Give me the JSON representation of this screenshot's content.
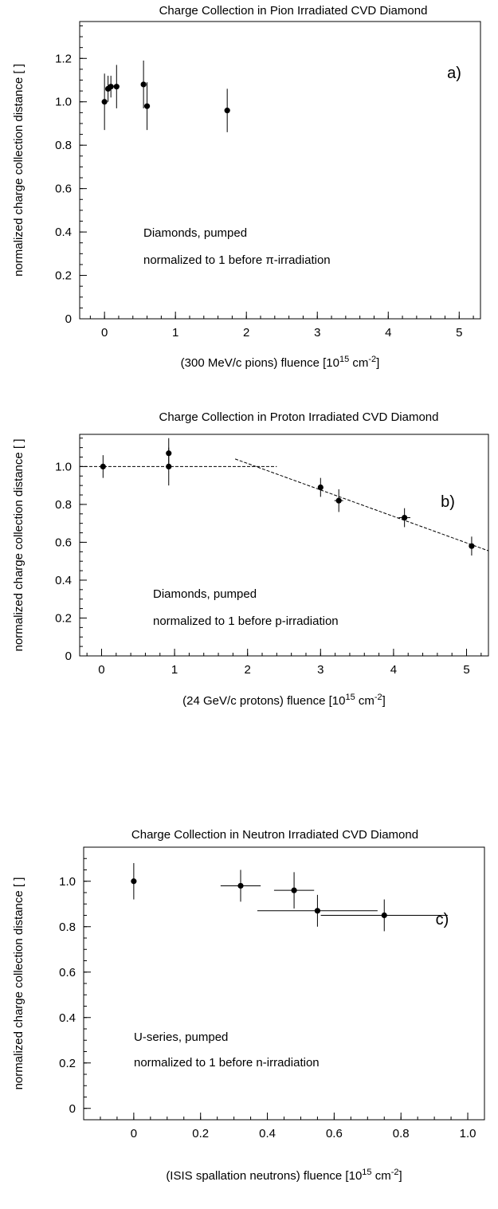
{
  "chart_data": [
    {
      "type": "scatter",
      "title": "Charge Collection in Pion Irradiated CVD Diamond",
      "xlabel": "(300 MeV/c pions) fluence [10",
      "xlabel_sup1": "15",
      "xlabel_mid": " cm",
      "xlabel_sup2": "-2",
      "xlabel_end": "]",
      "ylabel": "normalized charge collection distance [ ]",
      "panel_label": "a)",
      "annotation_lines": [
        "Diamonds, pumped",
        "normalized to 1 before π-irradiation"
      ],
      "xlim": [
        -0.35,
        5.3
      ],
      "ylim": [
        0,
        1.37
      ],
      "xticks": [
        0,
        1,
        2,
        3,
        4,
        5
      ],
      "xtick_labels": [
        "0",
        "1",
        "2",
        "3",
        "4",
        "5"
      ],
      "yticks": [
        0,
        0.2,
        0.4,
        0.6,
        0.8,
        1.0,
        1.2
      ],
      "ytick_labels": [
        "0",
        "0.2",
        "0.4",
        "0.6",
        "0.8",
        "1.0",
        "1.2"
      ],
      "series": [
        {
          "x": [
            0.0,
            0.05,
            0.09,
            0.17,
            0.55,
            0.6,
            1.73
          ],
          "y": [
            1.0,
            1.06,
            1.07,
            1.07,
            1.08,
            0.98,
            0.96
          ],
          "yerr": [
            0.13,
            0.06,
            0.05,
            0.1,
            0.11,
            0.11,
            0.1
          ],
          "xerr": [
            0,
            0,
            0,
            0,
            0,
            0,
            0
          ]
        }
      ],
      "fits": []
    },
    {
      "type": "scatter",
      "title": "Charge Collection in Proton Irradiated CVD Diamond",
      "xlabel": "(24 GeV/c protons) fluence [10",
      "xlabel_sup1": "15",
      "xlabel_mid": " cm",
      "xlabel_sup2": "-2",
      "xlabel_end": "]",
      "ylabel": "normalized charge collection distance [ ]",
      "panel_label": "b)",
      "annotation_lines": [
        "Diamonds, pumped",
        "normalized to 1 before p-irradiation"
      ],
      "xlim": [
        -0.3,
        5.3
      ],
      "ylim": [
        0,
        1.17
      ],
      "xticks": [
        0,
        1,
        2,
        3,
        4,
        5
      ],
      "xtick_labels": [
        "0",
        "1",
        "2",
        "3",
        "4",
        "5"
      ],
      "yticks": [
        0,
        0.2,
        0.4,
        0.6,
        0.8,
        1.0
      ],
      "ytick_labels": [
        "0",
        "0.2",
        "0.4",
        "0.6",
        "0.8",
        "1.0"
      ],
      "series": [
        {
          "x": [
            0.02,
            0.92,
            0.92,
            3.0,
            3.25,
            4.15,
            5.07
          ],
          "y": [
            1.0,
            1.07,
            1.0,
            0.89,
            0.82,
            0.73,
            0.58
          ],
          "yerr": [
            0.06,
            0.08,
            0.1,
            0.05,
            0.06,
            0.05,
            0.05
          ],
          "xerr": [
            0,
            0,
            0,
            0,
            0.06,
            0.08,
            0
          ]
        }
      ],
      "fits": [
        {
          "x": [
            -0.3,
            2.4
          ],
          "y": [
            1.0,
            1.0
          ]
        },
        {
          "x": [
            1.83,
            5.3
          ],
          "y": [
            1.04,
            0.555
          ]
        }
      ]
    },
    {
      "type": "scatter",
      "title": "Charge Collection in Neutron Irradiated CVD Diamond",
      "xlabel": "(ISIS spallation neutrons) fluence [10",
      "xlabel_sup1": "15",
      "xlabel_mid": " cm",
      "xlabel_sup2": "-2",
      "xlabel_end": "]",
      "ylabel": "normalized charge collection distance [ ]",
      "panel_label": "c)",
      "annotation_lines": [
        "U-series, pumped",
        "normalized to 1 before n-irradiation"
      ],
      "xlim": [
        -0.15,
        1.05
      ],
      "ylim": [
        -0.05,
        1.15
      ],
      "xticks": [
        0,
        0.2,
        0.4,
        0.6,
        0.8,
        1.0
      ],
      "xtick_labels": [
        "0",
        "0.2",
        "0.4",
        "0.6",
        "0.8",
        "1.0"
      ],
      "yticks": [
        0,
        0.2,
        0.4,
        0.6,
        0.8,
        1.0
      ],
      "ytick_labels": [
        "0",
        "0.2",
        "0.4",
        "0.6",
        "0.8",
        "1.0"
      ],
      "series": [
        {
          "x": [
            0.0,
            0.32,
            0.48,
            0.55,
            0.75
          ],
          "y": [
            1.0,
            0.98,
            0.96,
            0.87,
            0.85
          ],
          "yerr": [
            0.08,
            0.07,
            0.08,
            0.07,
            0.07
          ],
          "xerr": [
            0,
            0.06,
            0.06,
            0.18,
            0.19
          ]
        }
      ],
      "fits": []
    }
  ]
}
